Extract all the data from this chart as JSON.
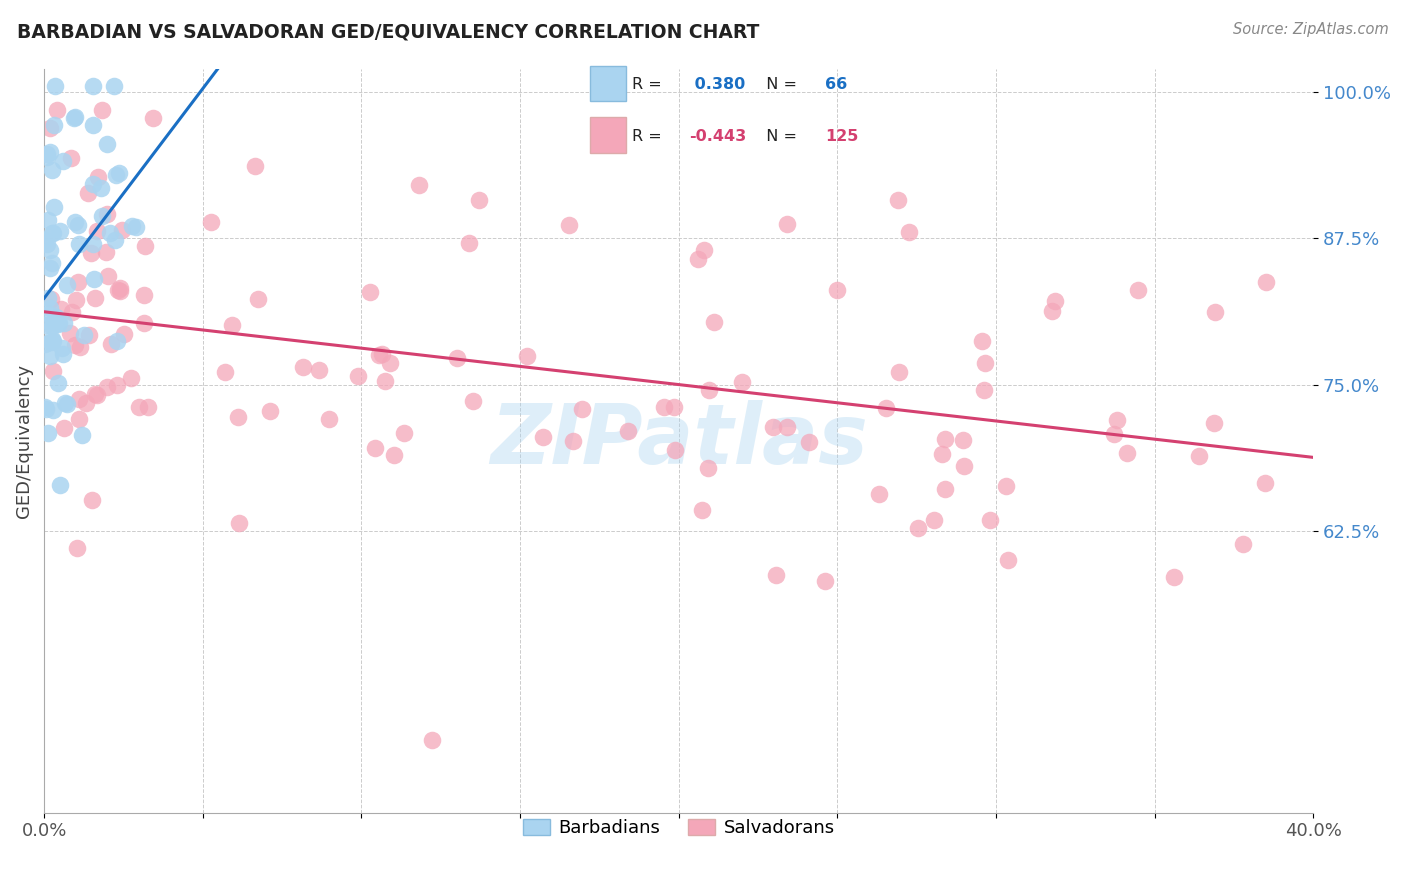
{
  "title": "BARBADIAN VS SALVADORAN GED/EQUIVALENCY CORRELATION CHART",
  "source": "Source: ZipAtlas.com",
  "ylabel": "GED/Equivalency",
  "xlim": [
    0.0,
    0.4
  ],
  "ylim": [
    0.385,
    1.02
  ],
  "yticks": [
    0.625,
    0.75,
    0.875,
    1.0
  ],
  "ytick_labels": [
    "62.5%",
    "75.0%",
    "87.5%",
    "100.0%"
  ],
  "xticks": [
    0.0,
    0.05,
    0.1,
    0.15,
    0.2,
    0.25,
    0.3,
    0.35,
    0.4
  ],
  "xtick_labels": [
    "0.0%",
    "",
    "",
    "",
    "",
    "",
    "",
    "",
    "40.0%"
  ],
  "watermark": "ZIPatlas",
  "barbadian_R": 0.38,
  "barbadian_N": 66,
  "salvadoran_R": -0.443,
  "salvadoran_N": 125,
  "barbadian_dot_color": "#aad4f0",
  "barbadian_line_color": "#1a6fc4",
  "salvadoran_dot_color": "#f4a7b9",
  "salvadoran_line_color": "#d44070",
  "background_color": "#ffffff",
  "grid_color": "#cccccc",
  "ytick_color": "#4488cc",
  "xtick_color": "#555555",
  "title_color": "#222222",
  "source_color": "#888888",
  "ylabel_color": "#444444",
  "watermark_color": "#aad4f0",
  "legend_label_barb": "Barbadians",
  "legend_label_salv": "Salvadorans"
}
